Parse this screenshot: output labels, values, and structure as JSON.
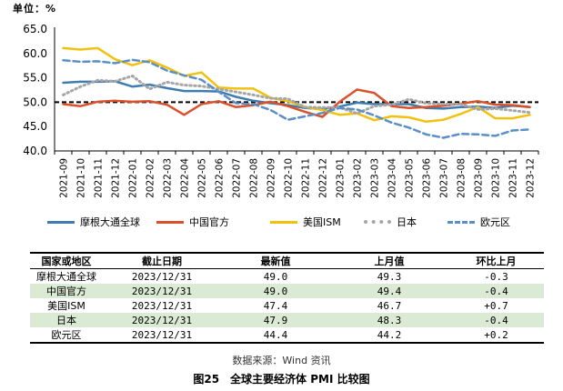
{
  "unit_label": "单位：%",
  "chart_data": {
    "type": "line",
    "ylim": [
      40,
      65
    ],
    "yticks": [
      "40.0",
      "45.0",
      "50.0",
      "55.0",
      "60.0",
      "65.0"
    ],
    "categories": [
      "2021-09",
      "2021-10",
      "2021-11",
      "2021-12",
      "2022-01",
      "2022-02",
      "2022-03",
      "2022-04",
      "2022-05",
      "2022-06",
      "2022-07",
      "2022-08",
      "2022-09",
      "2022-10",
      "2022-11",
      "2022-12",
      "2023-01",
      "2023-02",
      "2023-03",
      "2023-04",
      "2023-05",
      "2023-06",
      "2023-07",
      "2023-08",
      "2023-09",
      "2023-10",
      "2023-11",
      "2023-12"
    ],
    "reference_line": 50,
    "series": [
      {
        "name": "摩根大通全球",
        "color": "#3e7cb1",
        "style": "solid",
        "values": [
          54.0,
          54.2,
          54.2,
          54.3,
          53.2,
          53.6,
          52.9,
          52.3,
          52.3,
          52.2,
          51.1,
          50.3,
          49.8,
          49.4,
          48.8,
          48.6,
          49.1,
          49.9,
          49.6,
          49.6,
          49.6,
          48.8,
          48.7,
          49.0,
          49.1,
          48.8,
          49.3,
          49.0
        ]
      },
      {
        "name": "中国官方",
        "color": "#d9502b",
        "style": "solid",
        "values": [
          49.6,
          49.2,
          50.1,
          50.3,
          50.1,
          50.2,
          49.5,
          47.4,
          49.6,
          50.2,
          49.0,
          49.4,
          50.1,
          49.2,
          48.0,
          47.0,
          50.1,
          52.6,
          51.9,
          49.2,
          48.8,
          49.0,
          49.3,
          49.7,
          50.2,
          49.5,
          49.4,
          49.0
        ]
      },
      {
        "name": "美国ISM",
        "color": "#f2c10f",
        "style": "solid",
        "values": [
          61.1,
          60.8,
          61.1,
          58.8,
          57.6,
          58.6,
          57.1,
          55.4,
          56.1,
          53.0,
          52.8,
          52.8,
          50.9,
          50.2,
          49.0,
          48.4,
          47.4,
          47.7,
          46.3,
          47.1,
          46.9,
          46.0,
          46.4,
          47.6,
          49.0,
          46.7,
          46.7,
          47.4
        ]
      },
      {
        "name": "日本",
        "color": "#a6a6a6",
        "style": "dotted",
        "values": [
          51.5,
          53.2,
          54.5,
          54.3,
          55.4,
          52.7,
          54.1,
          53.5,
          53.3,
          52.7,
          52.1,
          51.5,
          50.8,
          50.7,
          49.0,
          48.9,
          48.9,
          47.7,
          49.2,
          49.5,
          50.6,
          49.8,
          49.6,
          49.6,
          48.5,
          48.7,
          48.3,
          47.9
        ]
      },
      {
        "name": "欧元区",
        "color": "#5b8fc7",
        "style": "dashed",
        "values": [
          58.6,
          58.3,
          58.4,
          58.0,
          58.7,
          58.2,
          56.5,
          55.5,
          54.6,
          52.1,
          49.8,
          49.6,
          48.4,
          46.4,
          47.1,
          47.8,
          48.8,
          48.5,
          47.3,
          45.8,
          44.8,
          43.4,
          42.7,
          43.5,
          43.4,
          43.1,
          44.2,
          44.4
        ]
      }
    ]
  },
  "table": {
    "headers": [
      "国家或地区",
      "截止日期",
      "最新值",
      "上月值",
      "环比上月"
    ],
    "rows": [
      [
        "摩根大通全球",
        "2023/12/31",
        "49.0",
        "49.3",
        "-0.3"
      ],
      [
        "中国官方",
        "2023/12/31",
        "49.0",
        "49.4",
        "-0.4"
      ],
      [
        "美国ISM",
        "2023/12/31",
        "47.4",
        "46.7",
        "+0.7"
      ],
      [
        "日本",
        "2023/12/31",
        "47.9",
        "48.3",
        "-0.4"
      ],
      [
        "欧元区",
        "2023/12/31",
        "44.4",
        "44.2",
        "+0.2"
      ]
    ]
  },
  "source": "数据来源：Wind 资讯",
  "caption": "图25　全球主要经济体 PMI 比较图"
}
